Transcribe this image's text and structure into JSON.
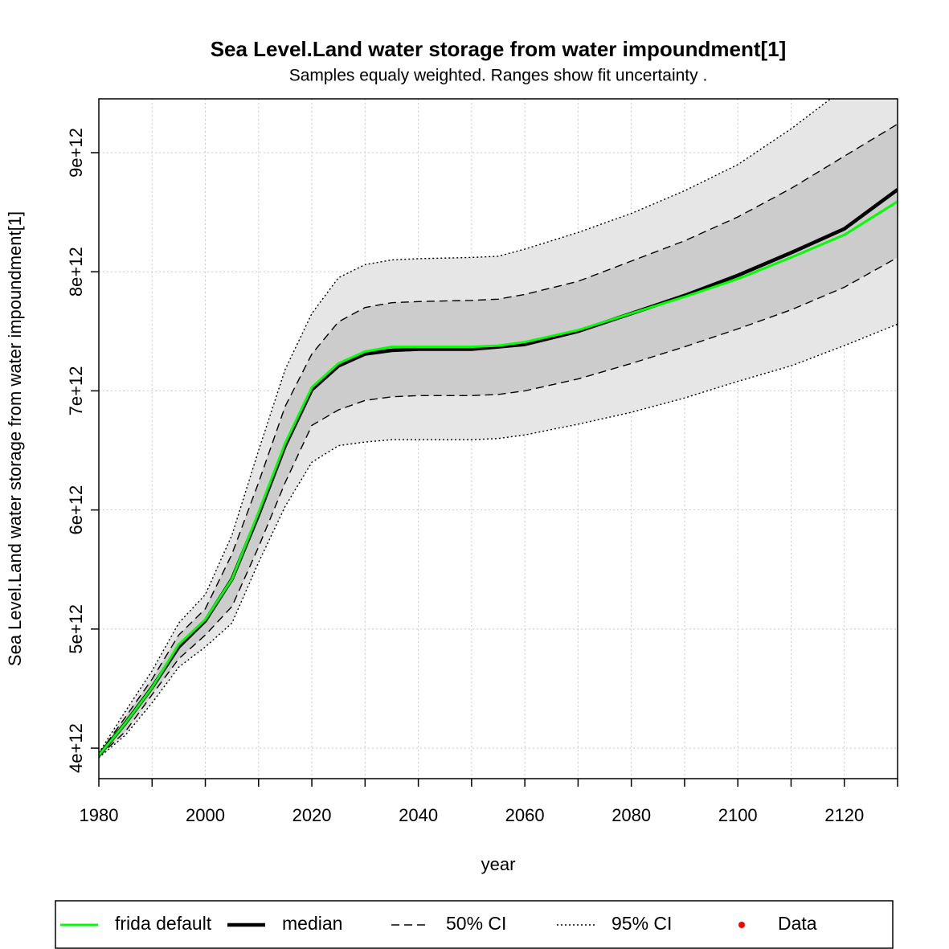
{
  "chart_data": {
    "type": "line",
    "title": "Sea Level.Land water storage from water impoundment[1]",
    "subtitle": "Samples equaly weighted. Ranges show  fit uncertainty .",
    "xlabel": "year",
    "ylabel": "Sea Level.Land water storage from water impoundment[1]",
    "x": [
      1980,
      1985,
      1990,
      1995,
      2000,
      2005,
      2010,
      2015,
      2020,
      2025,
      2030,
      2035,
      2040,
      2050,
      2055,
      2060,
      2070,
      2080,
      2090,
      2100,
      2110,
      2120,
      2130
    ],
    "series": [
      {
        "name": "frida default",
        "color": "#00ff00",
        "width": 3,
        "values": [
          3940000000000.0,
          4210000000000.0,
          4510000000000.0,
          4870000000000.0,
          5080000000000.0,
          5420000000000.0,
          5980000000000.0,
          6560000000000.0,
          7030000000000.0,
          7230000000000.0,
          7330000000000.0,
          7370000000000.0,
          7370000000000.0,
          7370000000000.0,
          7380000000000.0,
          7410000000000.0,
          7510000000000.0,
          7650000000000.0,
          7790000000000.0,
          7940000000000.0,
          8120000000000.0,
          8310000000000.0,
          8590000000000.0
        ]
      },
      {
        "name": "median",
        "color": "#000000",
        "width": 4.5,
        "values": [
          3940000000000.0,
          4210000000000.0,
          4510000000000.0,
          4850000000000.0,
          5070000000000.0,
          5420000000000.0,
          5960000000000.0,
          6540000000000.0,
          7010000000000.0,
          7210000000000.0,
          7310000000000.0,
          7340000000000.0,
          7350000000000.0,
          7350000000000.0,
          7370000000000.0,
          7390000000000.0,
          7500000000000.0,
          7650000000000.0,
          7800000000000.0,
          7970000000000.0,
          8160000000000.0,
          8360000000000.0,
          8690000000000.0
        ]
      },
      {
        "name": "Data",
        "color": "#ff0000",
        "point": true,
        "values": [
          null,
          null,
          null,
          null,
          null,
          null,
          null,
          null,
          null,
          null,
          null,
          null,
          null,
          null,
          null,
          null,
          null,
          null,
          null,
          null,
          null,
          null,
          null
        ]
      }
    ],
    "bands": [
      {
        "name": "95% CI",
        "fill": "#e6e6e6",
        "dash": "2,3",
        "lower": [
          3920000000000.0,
          4110000000000.0,
          4380000000000.0,
          4680000000000.0,
          4850000000000.0,
          5050000000000.0,
          5560000000000.0,
          6030000000000.0,
          6400000000000.0,
          6540000000000.0,
          6570000000000.0,
          6590000000000.0,
          6590000000000.0,
          6590000000000.0,
          6600000000000.0,
          6630000000000.0,
          6720000000000.0,
          6820000000000.0,
          6940000000000.0,
          7080000000000.0,
          7210000000000.0,
          7380000000000.0,
          7560000000000.0
        ],
        "upper": [
          3960000000000.0,
          4310000000000.0,
          4650000000000.0,
          5050000000000.0,
          5290000000000.0,
          5790000000000.0,
          6500000000000.0,
          7180000000000.0,
          7650000000000.0,
          7950000000000.0,
          8060000000000.0,
          8100000000000.0,
          8110000000000.0,
          8120000000000.0,
          8130000000000.0,
          8190000000000.0,
          8330000000000.0,
          8490000000000.0,
          8680000000000.0,
          8900000000000.0,
          9200000000000.0,
          9540000000000.0,
          9780000000000.0
        ]
      },
      {
        "name": "50% CI",
        "fill": "#cccccc",
        "dash": "10,6",
        "lower": [
          3930000000000.0,
          4140000000000.0,
          4450000000000.0,
          4750000000000.0,
          4950000000000.0,
          5190000000000.0,
          5690000000000.0,
          6230000000000.0,
          6710000000000.0,
          6840000000000.0,
          6920000000000.0,
          6950000000000.0,
          6960000000000.0,
          6960000000000.0,
          6970000000000.0,
          7000000000000.0,
          7100000000000.0,
          7230000000000.0,
          7370000000000.0,
          7520000000000.0,
          7680000000000.0,
          7870000000000.0,
          8120000000000.0
        ],
        "upper": [
          3950000000000.0,
          4260000000000.0,
          4580000000000.0,
          4950000000000.0,
          5170000000000.0,
          5630000000000.0,
          6230000000000.0,
          6870000000000.0,
          7310000000000.0,
          7580000000000.0,
          7700000000000.0,
          7740000000000.0,
          7750000000000.0,
          7760000000000.0,
          7770000000000.0,
          7810000000000.0,
          7920000000000.0,
          8090000000000.0,
          8260000000000.0,
          8460000000000.0,
          8700000000000.0,
          8970000000000.0,
          9240000000000.0
        ]
      }
    ],
    "xlim": [
      1980,
      2130
    ],
    "xticks": [
      1980,
      2000,
      2020,
      2040,
      2060,
      2080,
      2100,
      2120
    ],
    "xminorticks": [
      1990,
      2010,
      2030,
      2050,
      2070,
      2090,
      2110,
      2130
    ],
    "ylim": [
      3744000000000.0,
      9452000000000.0
    ],
    "yticks": [
      {
        "value": 4000000000000.0,
        "label": "4e+12"
      },
      {
        "value": 5000000000000.0,
        "label": "5e+12"
      },
      {
        "value": 6000000000000.0,
        "label": "6e+12"
      },
      {
        "value": 7000000000000.0,
        "label": "7e+12"
      },
      {
        "value": 8000000000000.0,
        "label": "8e+12"
      },
      {
        "value": 9000000000000.0,
        "label": "9e+12"
      }
    ],
    "grid": true,
    "legend": "bottom"
  }
}
